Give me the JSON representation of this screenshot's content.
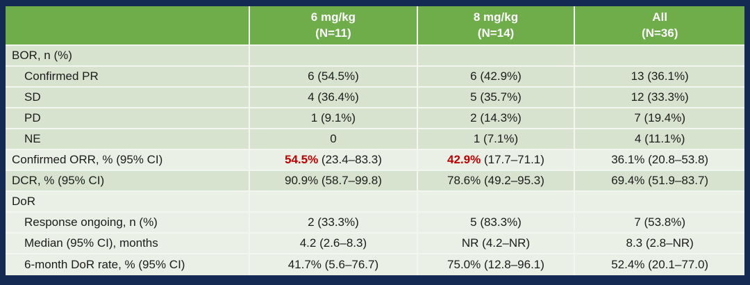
{
  "colors": {
    "frame_navy": "#142a52",
    "header_green": "#6ead4a",
    "header_text": "#ffffff",
    "band_medium": "#d8e3cf",
    "band_light": "#eaf0e5",
    "grid_line": "#f3f6ef",
    "body_text": "#1c1c1c",
    "highlight_red": "#c00000"
  },
  "table": {
    "columns": [
      {
        "label": ""
      },
      {
        "label": "6 mg/kg",
        "sublabel": "(N=11)"
      },
      {
        "label": "8 mg/kg",
        "sublabel": "(N=14)"
      },
      {
        "label": "All",
        "sublabel": "(N=36)"
      }
    ],
    "rows": [
      {
        "label": "BOR, n (%)",
        "values": [
          "",
          "",
          ""
        ]
      },
      {
        "label": "Confirmed PR",
        "values": [
          "6 (54.5%)",
          "6 (42.9%)",
          "13 (36.1%)"
        ]
      },
      {
        "label": "SD",
        "values": [
          "4 (36.4%)",
          "5 (35.7%)",
          "12 (33.3%)"
        ]
      },
      {
        "label": "PD",
        "values": [
          "1 (9.1%)",
          "2 (14.3%)",
          "7 (19.4%)"
        ]
      },
      {
        "label": "NE",
        "values": [
          "0",
          "1 (7.1%)",
          "4 (11.1%)"
        ]
      },
      {
        "label": "Confirmed ORR, % (95% CI)",
        "values": [
          {
            "red": "54.5%",
            "ci": " (23.4–83.3)"
          },
          {
            "red": "42.9%",
            "ci": " (17.7–71.1)"
          },
          "36.1% (20.8–53.8)"
        ]
      },
      {
        "label": "DCR, % (95% CI)",
        "values": [
          "90.9% (58.7–99.8)",
          "78.6% (49.2–95.3)",
          "69.4% (51.9–83.7)"
        ]
      },
      {
        "label": "DoR",
        "values": [
          "",
          "",
          ""
        ]
      },
      {
        "label": "Response ongoing, n (%)",
        "values": [
          "2 (33.3%)",
          "5 (83.3%)",
          "7 (53.8%)"
        ]
      },
      {
        "label": "Median (95% CI), months",
        "values": [
          "4.2 (2.6–8.3)",
          "NR (4.2–NR)",
          "8.3 (2.8–NR)"
        ]
      },
      {
        "label": "6-month DoR rate, % (95% CI)",
        "values": [
          "41.7% (5.6–76.7)",
          "75.0% (12.8–96.1)",
          "52.4% (20.1–77.0)"
        ]
      }
    ]
  }
}
